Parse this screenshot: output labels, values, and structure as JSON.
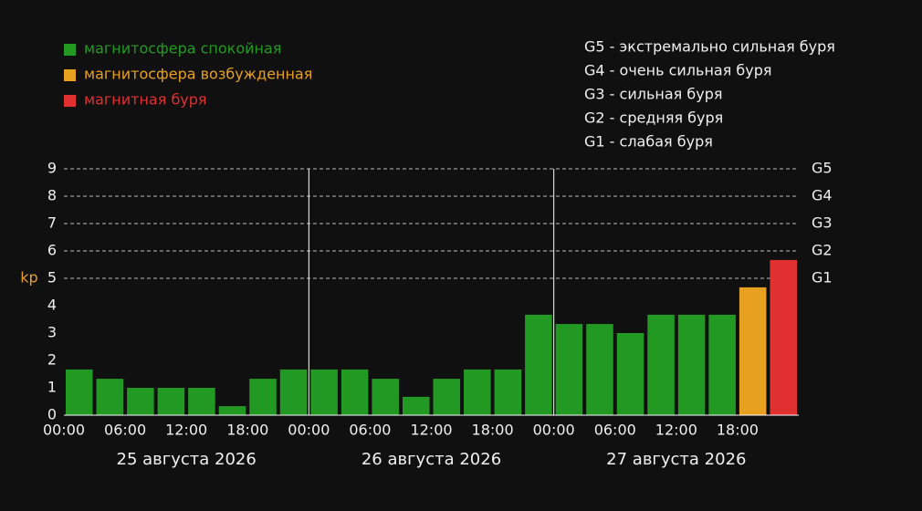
{
  "chart_data": {
    "type": "bar",
    "legend": [
      {
        "name": "магнитосфера спокойная",
        "color": "#229922"
      },
      {
        "name": "магнитосфера возбужденная",
        "color": "#e8a020"
      },
      {
        "name": "магнитная буря",
        "color": "#e03030"
      }
    ],
    "scale_notes": [
      "G5 - экстремально сильная буря",
      "G4 - очень сильная буря",
      "G3 - сильная буря",
      "G2 - средняя буря",
      "G1 - слабая буря"
    ],
    "ylabel": "kp",
    "x": [
      0,
      3,
      6,
      9,
      12,
      15,
      18,
      21,
      24,
      27,
      30,
      33,
      36,
      39,
      42,
      45,
      48,
      51,
      54,
      57,
      60,
      63,
      66,
      69
    ],
    "bar_width": 3,
    "values": [
      1.67,
      1.33,
      1.0,
      1.0,
      1.0,
      0.33,
      1.33,
      1.67,
      1.67,
      1.67,
      1.33,
      0.67,
      1.33,
      1.67,
      1.67,
      3.67,
      3.33,
      3.33,
      3.0,
      3.67,
      3.67,
      3.67,
      4.67,
      5.67
    ],
    "bar_legend_index": [
      0,
      0,
      0,
      0,
      0,
      0,
      0,
      0,
      0,
      0,
      0,
      0,
      0,
      0,
      0,
      0,
      0,
      0,
      0,
      0,
      0,
      0,
      1,
      2
    ],
    "xlim": [
      0,
      72
    ],
    "xticks": [
      {
        "value": 0,
        "label": "00:00"
      },
      {
        "value": 6,
        "label": "06:00"
      },
      {
        "value": 12,
        "label": "12:00"
      },
      {
        "value": 18,
        "label": "18:00"
      },
      {
        "value": 24,
        "label": "00:00"
      },
      {
        "value": 30,
        "label": "06:00"
      },
      {
        "value": 36,
        "label": "12:00"
      },
      {
        "value": 42,
        "label": "18:00"
      },
      {
        "value": 48,
        "label": "00:00"
      },
      {
        "value": 54,
        "label": "06:00"
      },
      {
        "value": 60,
        "label": "12:00"
      },
      {
        "value": 66,
        "label": "18:00"
      }
    ],
    "days": [
      {
        "value": 12,
        "label": "25 августа 2026"
      },
      {
        "value": 36,
        "label": "26 августа 2026"
      },
      {
        "value": 60,
        "label": "27 августа 2026"
      }
    ],
    "day_separators": [
      24,
      48
    ],
    "ylim": [
      0,
      9
    ],
    "yticks": [
      0,
      1,
      2,
      3,
      4,
      5,
      6,
      7,
      8,
      9
    ],
    "y2lim": [
      0,
      9
    ],
    "y2ticks": [
      {
        "value": 5,
        "label": "G1"
      },
      {
        "value": 6,
        "label": "G2"
      },
      {
        "value": 7,
        "label": "G3"
      },
      {
        "value": 8,
        "label": "G4"
      },
      {
        "value": 9,
        "label": "G5"
      }
    ],
    "grid": true
  }
}
